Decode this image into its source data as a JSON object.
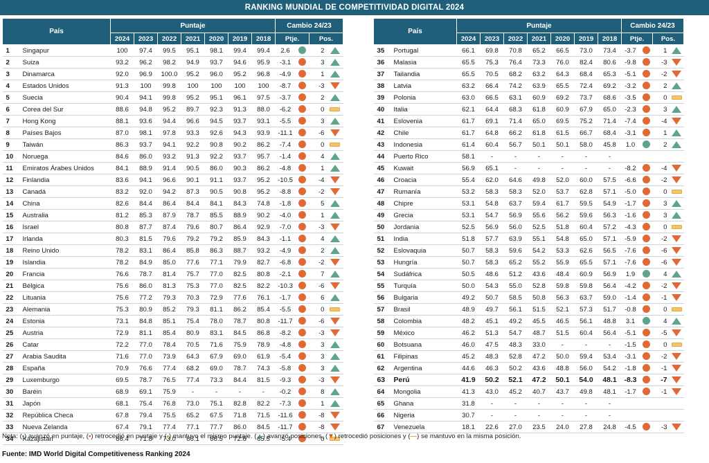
{
  "title": "RANKING MUNDIAL DE COMPETITIVIDAD DIGITAL 2024",
  "headers": {
    "country": "País",
    "score": "Puntaje",
    "change": "Cambio 24/23",
    "years": [
      "2024",
      "2023",
      "2022",
      "2021",
      "2020",
      "2019",
      "2018"
    ],
    "ptje": "Ptje.",
    "pos": "Pos."
  },
  "colors": {
    "header_bg": "#1f5f7a",
    "up": "#5fa58c",
    "down": "#e06a35",
    "same": "#f2b134"
  },
  "left_rows": [
    {
      "rank": "1",
      "country": "Singapur",
      "s": [
        "100",
        "97.4",
        "99.5",
        "95.1",
        "98.1",
        "99.4",
        "99.4"
      ],
      "d": "2.6",
      "ds": "up",
      "p": "2",
      "ps": "up"
    },
    {
      "rank": "2",
      "country": "Suiza",
      "s": [
        "93.2",
        "96.2",
        "98.2",
        "94.9",
        "93.7",
        "94.6",
        "95.9"
      ],
      "d": "-3.1",
      "ds": "down",
      "p": "3",
      "ps": "up"
    },
    {
      "rank": "3",
      "country": "Dinamarca",
      "s": [
        "92.0",
        "96.9",
        "100.0",
        "95.2",
        "96.0",
        "95.2",
        "96.8"
      ],
      "d": "-4.9",
      "ds": "down",
      "p": "1",
      "ps": "up"
    },
    {
      "rank": "4",
      "country": "Estados Unidos",
      "s": [
        "91.3",
        "100",
        "99.8",
        "100",
        "100",
        "100",
        "100"
      ],
      "d": "-8.7",
      "ds": "down",
      "p": "-3",
      "ps": "down"
    },
    {
      "rank": "5",
      "country": "Suecia",
      "s": [
        "90.4",
        "94.1",
        "99.8",
        "95.2",
        "95.1",
        "96.1",
        "97.5"
      ],
      "d": "-3.7",
      "ds": "down",
      "p": "2",
      "ps": "up"
    },
    {
      "rank": "6",
      "country": "Corea del Sur",
      "s": [
        "88.6",
        "94.8",
        "95.2",
        "89.7",
        "92.3",
        "91.3",
        "88.0"
      ],
      "d": "-6.2",
      "ds": "down",
      "p": "0",
      "ps": "same"
    },
    {
      "rank": "7",
      "country": "Hong Kong",
      "s": [
        "88.1",
        "93.6",
        "94.4",
        "96.6",
        "94.5",
        "93.7",
        "93.1"
      ],
      "d": "-5.5",
      "ds": "down",
      "p": "3",
      "ps": "up"
    },
    {
      "rank": "8",
      "country": "Países Bajos",
      "s": [
        "87.0",
        "98.1",
        "97.8",
        "93.3",
        "92.6",
        "94.3",
        "93.9"
      ],
      "d": "-11.1",
      "ds": "down",
      "p": "-6",
      "ps": "down"
    },
    {
      "rank": "9",
      "country": "Taiwán",
      "s": [
        "86.3",
        "93.7",
        "94.1",
        "92.2",
        "90.8",
        "90.2",
        "86.2"
      ],
      "d": "-7.4",
      "ds": "down",
      "p": "0",
      "ps": "same"
    },
    {
      "rank": "10",
      "country": "Noruega",
      "s": [
        "84.6",
        "86.0",
        "93.2",
        "91.3",
        "92.2",
        "93.7",
        "95.7"
      ],
      "d": "-1.4",
      "ds": "down",
      "p": "4",
      "ps": "up"
    },
    {
      "rank": "11",
      "country": "Emiratos Árabes Unidos",
      "s": [
        "84.1",
        "88.9",
        "91.4",
        "90.5",
        "86.0",
        "90.3",
        "86.2"
      ],
      "d": "-4.8",
      "ds": "down",
      "p": "1",
      "ps": "up"
    },
    {
      "rank": "12",
      "country": "Finlandia",
      "s": [
        "83.6",
        "94.1",
        "96.6",
        "90.1",
        "91.1",
        "93.7",
        "95.2"
      ],
      "d": "-10.5",
      "ds": "down",
      "p": "-4",
      "ps": "down"
    },
    {
      "rank": "13",
      "country": "Canadá",
      "s": [
        "83.2",
        "92.0",
        "94.2",
        "87.3",
        "90.5",
        "90.8",
        "95.2"
      ],
      "d": "-8.8",
      "ds": "down",
      "p": "-2",
      "ps": "down"
    },
    {
      "rank": "14",
      "country": "China",
      "s": [
        "82.6",
        "84.4",
        "86.4",
        "84.4",
        "84.1",
        "84.3",
        "74.8"
      ],
      "d": "-1.8",
      "ds": "down",
      "p": "5",
      "ps": "up"
    },
    {
      "rank": "15",
      "country": "Australia",
      "s": [
        "81.2",
        "85.3",
        "87.9",
        "78.7",
        "85.5",
        "88.9",
        "90.2"
      ],
      "d": "-4.0",
      "ds": "down",
      "p": "1",
      "ps": "up"
    },
    {
      "rank": "16",
      "country": "Israel",
      "s": [
        "80.8",
        "87.7",
        "87.4",
        "79.6",
        "80.7",
        "86.4",
        "92.9"
      ],
      "d": "-7.0",
      "ds": "down",
      "p": "-3",
      "ps": "down"
    },
    {
      "rank": "17",
      "country": "Irlanda",
      "s": [
        "80.3",
        "81.5",
        "79.6",
        "79.2",
        "79.2",
        "85.9",
        "84.3"
      ],
      "d": "-1.1",
      "ds": "down",
      "p": "4",
      "ps": "up"
    },
    {
      "rank": "18",
      "country": "Reino Unido",
      "s": [
        "78.2",
        "83.1",
        "86.4",
        "85.8",
        "86.3",
        "88.7",
        "93.2"
      ],
      "d": "-4.9",
      "ds": "down",
      "p": "2",
      "ps": "up"
    },
    {
      "rank": "19",
      "country": "Islandia",
      "s": [
        "78.2",
        "84.9",
        "85.0",
        "77.6",
        "77.1",
        "79.9",
        "82.7"
      ],
      "d": "-6.8",
      "ds": "down",
      "p": "-2",
      "ps": "down"
    },
    {
      "rank": "20",
      "country": "Francia",
      "s": [
        "76.6",
        "78.7",
        "81.4",
        "75.7",
        "77.0",
        "82.5",
        "80.8"
      ],
      "d": "-2.1",
      "ds": "down",
      "p": "7",
      "ps": "up"
    },
    {
      "rank": "21",
      "country": "Bélgica",
      "s": [
        "75.6",
        "86.0",
        "81.3",
        "75.3",
        "77.0",
        "82.5",
        "82.2"
      ],
      "d": "-10.3",
      "ds": "down",
      "p": "-6",
      "ps": "down"
    },
    {
      "rank": "22",
      "country": "Lituania",
      "s": [
        "75.6",
        "77.2",
        "79.3",
        "70.3",
        "72.9",
        "77.6",
        "76.1"
      ],
      "d": "-1.7",
      "ds": "down",
      "p": "6",
      "ps": "up"
    },
    {
      "rank": "23",
      "country": "Alemania",
      "s": [
        "75.3",
        "80.9",
        "85.2",
        "79.3",
        "81.1",
        "86.2",
        "85.4"
      ],
      "d": "-5.5",
      "ds": "down",
      "p": "0",
      "ps": "same"
    },
    {
      "rank": "24",
      "country": "Estonia",
      "s": [
        "73.1",
        "84.8",
        "85.1",
        "75.4",
        "78.0",
        "78.7",
        "80.8"
      ],
      "d": "-11.7",
      "ds": "down",
      "p": "-6",
      "ps": "down"
    },
    {
      "rank": "25",
      "country": "Austria",
      "s": [
        "72.9",
        "81.1",
        "85.4",
        "80.9",
        "83.1",
        "84.5",
        "86.8"
      ],
      "d": "-8.2",
      "ds": "down",
      "p": "-3",
      "ps": "down"
    },
    {
      "rank": "26",
      "country": "Catar",
      "s": [
        "72.2",
        "77.0",
        "78.4",
        "70.5",
        "71.6",
        "75.9",
        "78.9"
      ],
      "d": "-4.8",
      "ds": "down",
      "p": "3",
      "ps": "up"
    },
    {
      "rank": "27",
      "country": "Arabia Saudita",
      "s": [
        "71.6",
        "77.0",
        "73.9",
        "64.3",
        "67.9",
        "69.0",
        "61.9"
      ],
      "d": "-5.4",
      "ds": "down",
      "p": "3",
      "ps": "up"
    },
    {
      "rank": "28",
      "country": "España",
      "s": [
        "70.9",
        "76.6",
        "77.4",
        "68.2",
        "69.0",
        "78.7",
        "74.3"
      ],
      "d": "-5.8",
      "ds": "down",
      "p": "3",
      "ps": "up"
    },
    {
      "rank": "29",
      "country": "Luxemburgo",
      "s": [
        "69.5",
        "78.7",
        "76.5",
        "77.4",
        "73.3",
        "84.4",
        "81.5"
      ],
      "d": "-9.3",
      "ds": "down",
      "p": "-3",
      "ps": "down"
    },
    {
      "rank": "30",
      "country": "Baréin",
      "s": [
        "68.9",
        "69.1",
        "75.9",
        "-",
        "-",
        "-",
        "-"
      ],
      "d": "-0.2",
      "ds": "down",
      "p": "8",
      "ps": "up"
    },
    {
      "rank": "31",
      "country": "Japón",
      "s": [
        "68.1",
        "75.4",
        "76.8",
        "73.0",
        "75.1",
        "82.8",
        "82.2"
      ],
      "d": "-7.3",
      "ds": "down",
      "p": "1",
      "ps": "up"
    },
    {
      "rank": "32",
      "country": "República Checa",
      "s": [
        "67.8",
        "79.4",
        "75.5",
        "65.2",
        "67.5",
        "71.8",
        "71.5"
      ],
      "d": "-11.6",
      "ds": "down",
      "p": "-8",
      "ps": "down"
    },
    {
      "rank": "33",
      "country": "Nueva Zelanda",
      "s": [
        "67.4",
        "79.1",
        "77.4",
        "77.1",
        "77.7",
        "86.0",
        "84.5"
      ],
      "d": "-11.7",
      "ds": "down",
      "p": "-8",
      "ps": "down"
    },
    {
      "rank": "34",
      "country": "Kazajistán",
      "s": [
        "66.4",
        "71.8",
        "73.0",
        "66.1",
        "66.5",
        "72.6",
        "65.5"
      ],
      "d": "-5.4",
      "ds": "down",
      "p": "0",
      "ps": "same"
    }
  ],
  "right_rows": [
    {
      "rank": "35",
      "country": "Portugal",
      "s": [
        "66.1",
        "69.8",
        "70.8",
        "65.2",
        "66.5",
        "73.0",
        "73.4"
      ],
      "d": "-3.7",
      "ds": "down",
      "p": "1",
      "ps": "up"
    },
    {
      "rank": "36",
      "country": "Malasia",
      "s": [
        "65.5",
        "75.3",
        "76.4",
        "73.3",
        "76.0",
        "82.4",
        "80.6"
      ],
      "d": "-9.8",
      "ds": "down",
      "p": "-3",
      "ps": "down"
    },
    {
      "rank": "37",
      "country": "Tailandia",
      "s": [
        "65.5",
        "70.5",
        "68.2",
        "63.2",
        "64.3",
        "68.4",
        "65.3"
      ],
      "d": "-5.1",
      "ds": "down",
      "p": "-2",
      "ps": "down"
    },
    {
      "rank": "38",
      "country": "Latvia",
      "s": [
        "63.2",
        "66.4",
        "74.2",
        "63.9",
        "65.5",
        "72.4",
        "69.2"
      ],
      "d": "-3.2",
      "ds": "down",
      "p": "2",
      "ps": "up"
    },
    {
      "rank": "39",
      "country": "Polonia",
      "s": [
        "63.0",
        "66.5",
        "63.1",
        "60.9",
        "69.2",
        "73.7",
        "68.6"
      ],
      "d": "-3.5",
      "ds": "down",
      "p": "0",
      "ps": "same"
    },
    {
      "rank": "40",
      "country": "Italia",
      "s": [
        "62.1",
        "64.4",
        "68.3",
        "61.8",
        "60.9",
        "67.9",
        "65.0"
      ],
      "d": "-2.3",
      "ds": "down",
      "p": "3",
      "ps": "up"
    },
    {
      "rank": "41",
      "country": "Eslovenia",
      "s": [
        "61.7",
        "69.1",
        "71.4",
        "65.0",
        "69.5",
        "75.2",
        "71.4"
      ],
      "d": "-7.4",
      "ds": "down",
      "p": "-4",
      "ps": "down"
    },
    {
      "rank": "42",
      "country": "Chile",
      "s": [
        "61.7",
        "64.8",
        "66.2",
        "61.8",
        "61.5",
        "66.7",
        "68.4"
      ],
      "d": "-3.1",
      "ds": "down",
      "p": "1",
      "ps": "up"
    },
    {
      "rank": "43",
      "country": "Indonesia",
      "s": [
        "61.4",
        "60.4",
        "56.7",
        "50.1",
        "50.1",
        "58.0",
        "45.8"
      ],
      "d": "1.0",
      "ds": "up",
      "p": "2",
      "ps": "up"
    },
    {
      "rank": "44",
      "country": "Puerto Rico",
      "s": [
        "58.1",
        "-",
        "-",
        "-",
        "-",
        "-",
        "-"
      ],
      "d": "",
      "ds": "",
      "p": "",
      "ps": ""
    },
    {
      "rank": "45",
      "country": "Kuwait",
      "s": [
        "56.9",
        "65.1",
        "-",
        "-",
        "-",
        "-",
        "-"
      ],
      "d": "-8.2",
      "ds": "down",
      "p": "-4",
      "ps": "down"
    },
    {
      "rank": "46",
      "country": "Croacia",
      "s": [
        "55.4",
        "62.0",
        "64.6",
        "49.8",
        "52.0",
        "60.0",
        "57.5"
      ],
      "d": "-6.6",
      "ds": "down",
      "p": "-2",
      "ps": "down"
    },
    {
      "rank": "47",
      "country": "Rumanía",
      "s": [
        "53.2",
        "58.3",
        "58.3",
        "52.0",
        "53.7",
        "62.8",
        "57.1"
      ],
      "d": "-5.0",
      "ds": "down",
      "p": "0",
      "ps": "same"
    },
    {
      "rank": "48",
      "country": "Chipre",
      "s": [
        "53.1",
        "54.8",
        "63.7",
        "59.4",
        "61.7",
        "59.5",
        "54.9"
      ],
      "d": "-1.7",
      "ds": "down",
      "p": "3",
      "ps": "up"
    },
    {
      "rank": "49",
      "country": "Grecia",
      "s": [
        "53.1",
        "54.7",
        "56.9",
        "55.6",
        "56.2",
        "59.6",
        "56.3"
      ],
      "d": "-1.6",
      "ds": "down",
      "p": "3",
      "ps": "up"
    },
    {
      "rank": "50",
      "country": "Jordania",
      "s": [
        "52.5",
        "56.9",
        "56.0",
        "52.5",
        "51.8",
        "60.4",
        "57.2"
      ],
      "d": "-4.3",
      "ds": "down",
      "p": "0",
      "ps": "same"
    },
    {
      "rank": "51",
      "country": "India",
      "s": [
        "51.8",
        "57.7",
        "63.9",
        "55.1",
        "54.8",
        "65.0",
        "57.1"
      ],
      "d": "-5.9",
      "ds": "down",
      "p": "-2",
      "ps": "down"
    },
    {
      "rank": "52",
      "country": "Eslovaquia",
      "s": [
        "50.7",
        "58.3",
        "59.6",
        "54.2",
        "53.3",
        "62.6",
        "56.5"
      ],
      "d": "-7.6",
      "ds": "down",
      "p": "-6",
      "ps": "down"
    },
    {
      "rank": "53",
      "country": "Hungría",
      "s": [
        "50.7",
        "58.3",
        "65.2",
        "55.2",
        "55.9",
        "65.5",
        "57.1"
      ],
      "d": "-7.6",
      "ds": "down",
      "p": "-6",
      "ps": "down"
    },
    {
      "rank": "54",
      "country": "Sudáfrica",
      "s": [
        "50.5",
        "48.6",
        "51.2",
        "43.6",
        "48.4",
        "60.9",
        "56.9"
      ],
      "d": "1.9",
      "ds": "up",
      "p": "4",
      "ps": "up"
    },
    {
      "rank": "55",
      "country": "Turquía",
      "s": [
        "50.0",
        "54.3",
        "55.0",
        "52.8",
        "59.8",
        "59.8",
        "56.4"
      ],
      "d": "-4.2",
      "ds": "down",
      "p": "-2",
      "ps": "down"
    },
    {
      "rank": "56",
      "country": "Bulgaria",
      "s": [
        "49.2",
        "50.7",
        "58.5",
        "50.8",
        "56.3",
        "63.7",
        "59.0"
      ],
      "d": "-1.4",
      "ds": "down",
      "p": "-1",
      "ps": "down"
    },
    {
      "rank": "57",
      "country": "Brasil",
      "s": [
        "48.9",
        "49.7",
        "56.1",
        "51.5",
        "52.1",
        "57.3",
        "51.7"
      ],
      "d": "-0.8",
      "ds": "down",
      "p": "0",
      "ps": "same"
    },
    {
      "rank": "58",
      "country": "Colombia",
      "s": [
        "48.2",
        "45.1",
        "49.2",
        "45.5",
        "46.5",
        "56.1",
        "48.8"
      ],
      "d": "3.1",
      "ds": "up",
      "p": "4",
      "ps": "up"
    },
    {
      "rank": "59",
      "country": "México",
      "s": [
        "46.2",
        "51.3",
        "54.7",
        "48.7",
        "51.5",
        "60.4",
        "56.4"
      ],
      "d": "-5.1",
      "ds": "down",
      "p": "-5",
      "ps": "down"
    },
    {
      "rank": "60",
      "country": "Botsuana",
      "s": [
        "46.0",
        "47.5",
        "48.3",
        "33.0",
        "-",
        "-",
        "-"
      ],
      "d": "-1.5",
      "ds": "down",
      "p": "0",
      "ps": "same"
    },
    {
      "rank": "61",
      "country": "Filipinas",
      "s": [
        "45.2",
        "48.3",
        "52.8",
        "47.2",
        "50.0",
        "59.4",
        "53.4"
      ],
      "d": "-3.1",
      "ds": "down",
      "p": "-2",
      "ps": "down"
    },
    {
      "rank": "62",
      "country": "Argentina",
      "s": [
        "44.6",
        "46.3",
        "50.2",
        "43.6",
        "48.8",
        "56.0",
        "54.2"
      ],
      "d": "-1.8",
      "ds": "down",
      "p": "-1",
      "ps": "down"
    },
    {
      "rank": "63",
      "country": "Perú",
      "s": [
        "41.9",
        "50.2",
        "52.1",
        "47.2",
        "50.1",
        "54.0",
        "48.1"
      ],
      "d": "-8.3",
      "ds": "down",
      "p": "-7",
      "ps": "down",
      "hl": true
    },
    {
      "rank": "64",
      "country": "Mongolia",
      "s": [
        "41.3",
        "43.0",
        "45.2",
        "40.7",
        "43.7",
        "49.8",
        "48.1"
      ],
      "d": "-1.7",
      "ds": "down",
      "p": "-1",
      "ps": "down"
    },
    {
      "rank": "65",
      "country": "Ghana",
      "s": [
        "31.8",
        "-",
        "-",
        "-",
        "-",
        "-",
        "-"
      ],
      "d": "",
      "ds": "",
      "p": "",
      "ps": ""
    },
    {
      "rank": "66",
      "country": "Nigeria",
      "s": [
        "30.7",
        "-",
        "-",
        "-",
        "-",
        "-",
        "-"
      ],
      "d": "",
      "ds": "",
      "p": "",
      "ps": ""
    },
    {
      "rank": "67",
      "country": "Venezuela",
      "s": [
        "18.1",
        "22.6",
        "27.0",
        "23.5",
        "24.0",
        "27.8",
        "24.8"
      ],
      "d": "-4.5",
      "ds": "down",
      "p": "-3",
      "ps": "down"
    }
  ],
  "note": {
    "t1": "Nota: (",
    "g": "•",
    "t2": ") avanzó en puntaje, (",
    "r": "•",
    "t3": ") retrocedió en puntaje y (",
    "y": "•",
    "t4": ") mantuvo el mismo puntaje. (",
    "ua": "▲",
    "t5": ") avanzó posiciones, (",
    "da": "▼",
    "t6": ") retrocedió posiciones y (",
    "sd": "—",
    "t7": ") se mantuvo en la misma posición."
  },
  "source": "Fuente: IMD World Digital Competitiveness Ranking 2024"
}
